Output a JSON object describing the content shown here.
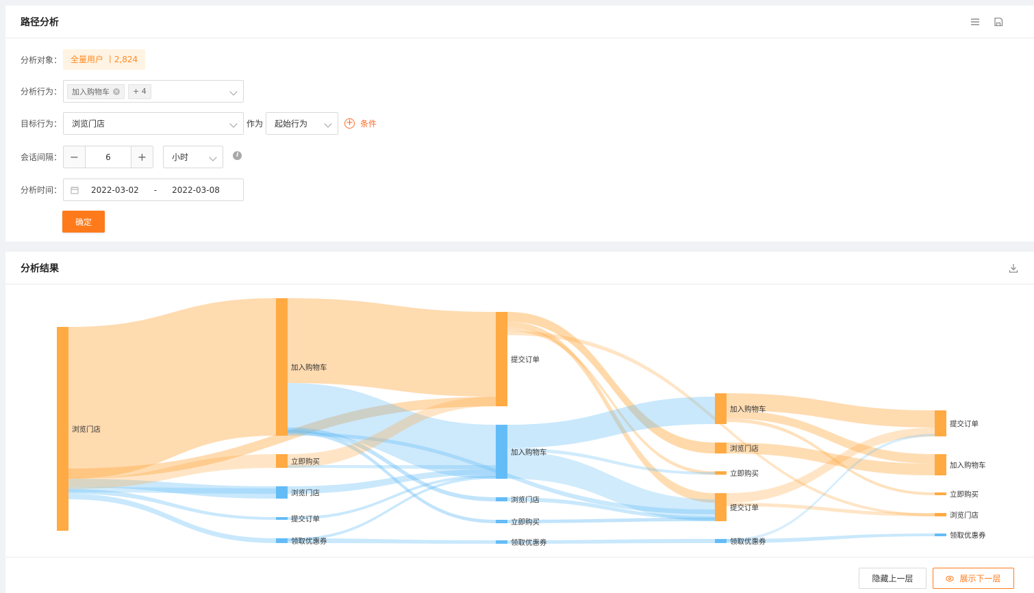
{
  "config_panel": {
    "title": "路径分析",
    "subject_label": "分析对象：",
    "subject_value": "全量用户 丨2,824",
    "behavior_label": "分析行为：",
    "behavior_chip": "加入购物车",
    "behavior_more": "+ 4",
    "target_label": "目标行为：",
    "target_value": "浏览门店",
    "as_label": "作为",
    "as_value": "起始行为",
    "condition_label": "条件",
    "interval_label": "会话间隔：",
    "interval_value": "6",
    "interval_unit": "小时",
    "time_label": "分析时间：",
    "date_start": "2022-03-02",
    "date_sep": "-",
    "date_end": "2022-03-08",
    "confirm_label": "确定"
  },
  "result_panel": {
    "title": "分析结果",
    "hide_prev_label": "隐藏上一层",
    "show_next_label": "展示下一层"
  },
  "colors": {
    "orange": "#ffaa42",
    "blue": "#64bcf6",
    "accent": "#ff7a1a"
  },
  "chart_data": {
    "type": "sankey",
    "node_labels": {
      "l0": "浏览门店",
      "l1_cart": "加入购物车",
      "l1_buy": "立即购买",
      "l1_store": "浏览门店",
      "l1_order": "提交订单",
      "l1_coupon": "领取优惠券",
      "l2_order": "提交订单",
      "l2_cart": "加入购物车",
      "l2_store": "浏览门店",
      "l2_buy": "立即购买",
      "l2_coupon": "领取优惠券",
      "l3_cart": "加入购物车",
      "l3_store": "浏览门店",
      "l3_buy": "立即购买",
      "l3_order": "提交订单",
      "l3_coupon": "领取优惠券",
      "l4_order": "提交订单",
      "l4_cart": "加入购物车",
      "l4_buy": "立即购买",
      "l4_store": "浏览门店",
      "l4_coupon": "领取优惠券"
    }
  }
}
